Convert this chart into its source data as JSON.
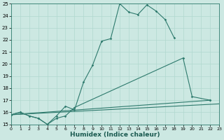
{
  "bg_color": "#cce8e2",
  "line_color": "#2e7a6d",
  "grid_color": "#b0d8ce",
  "xlabel": "Humidex (Indice chaleur)",
  "xlim": [
    0,
    23
  ],
  "ylim": [
    15,
    25
  ],
  "xticks": [
    0,
    1,
    2,
    3,
    4,
    5,
    6,
    7,
    8,
    9,
    10,
    11,
    12,
    13,
    14,
    15,
    16,
    17,
    18,
    19,
    20,
    21,
    22,
    23
  ],
  "yticks": [
    15,
    16,
    17,
    18,
    19,
    20,
    21,
    22,
    23,
    24,
    25
  ],
  "line1": {
    "x": [
      0,
      1,
      2,
      3,
      4,
      5,
      6,
      7,
      8,
      9,
      10,
      11,
      12,
      13,
      14,
      15,
      16,
      17,
      18
    ],
    "y": [
      15.8,
      16.0,
      15.7,
      15.5,
      15.0,
      15.7,
      16.5,
      16.2,
      18.5,
      19.9,
      21.9,
      22.1,
      25.0,
      24.3,
      24.1,
      24.9,
      24.4,
      23.7,
      22.2
    ]
  },
  "line2": {
    "x": [
      0,
      1,
      2,
      3,
      4,
      5,
      6,
      7,
      19,
      20,
      22
    ],
    "y": [
      15.8,
      16.0,
      15.7,
      15.5,
      15.0,
      15.5,
      15.7,
      16.4,
      20.5,
      17.3,
      17.0
    ]
  },
  "line3": {
    "comment": "Diagonal line from (0,15.8) to (22,17.0)",
    "x": [
      0,
      22
    ],
    "y": [
      15.8,
      17.0
    ]
  },
  "line4": {
    "x": [
      0,
      23
    ],
    "y": [
      15.8,
      16.7
    ]
  }
}
